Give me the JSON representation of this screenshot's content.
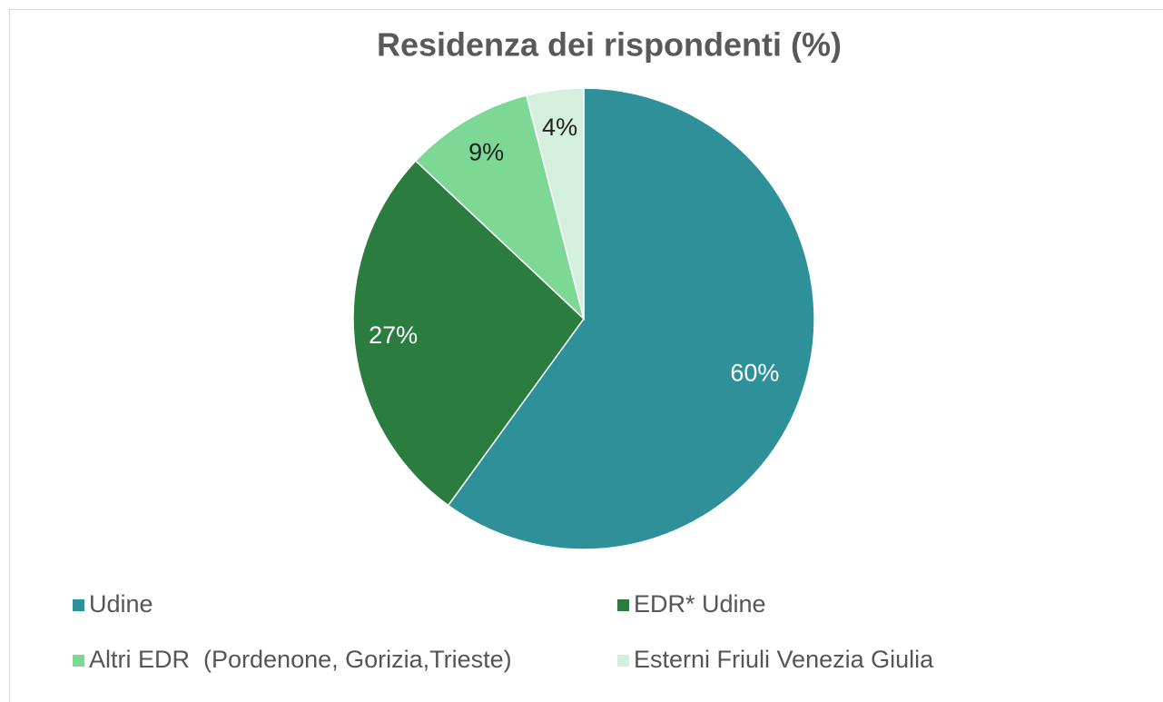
{
  "chart_data": {
    "type": "pie",
    "title": "Residenza dei rispondenti (%)",
    "categories": [
      "Udine",
      "EDR* Udine",
      "Altri EDR  (Pordenone, Gorizia,Trieste)",
      "Esterni Friuli Venezia Giulia"
    ],
    "values": [
      60,
      27,
      9,
      4
    ],
    "value_labels": [
      "60%",
      "27%",
      "9%",
      "4%"
    ],
    "colors": [
      "#2e9099",
      "#2a7d3e",
      "#7dd895",
      "#d4f0dc"
    ],
    "legend": "bottom"
  }
}
